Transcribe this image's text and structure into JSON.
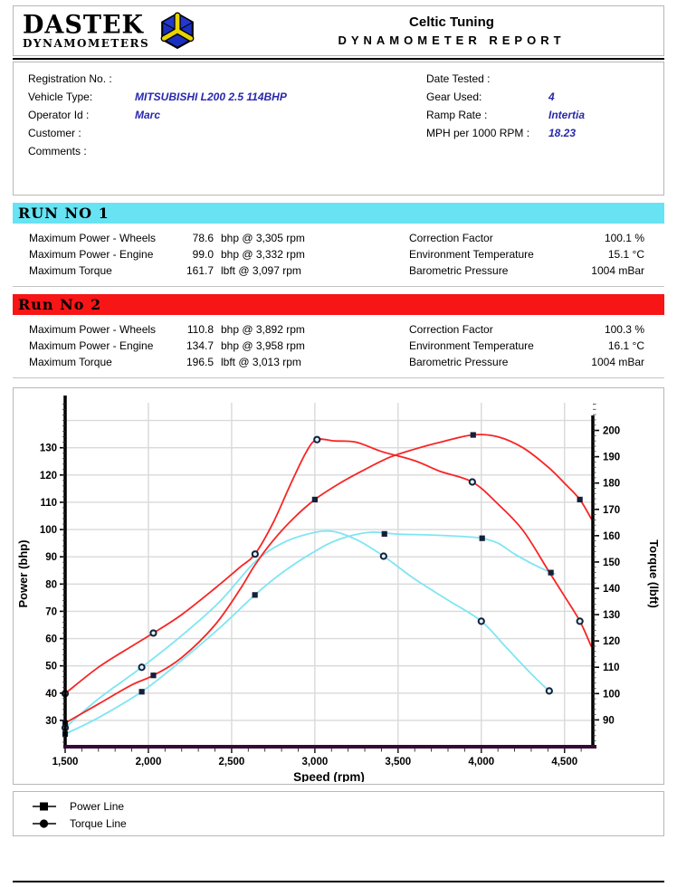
{
  "header": {
    "logo_line1": "DASTEK",
    "logo_line2": "DYNAMOMETERS",
    "title": "Celtic Tuning",
    "subtitle": "DYNAMOMETER REPORT"
  },
  "info": {
    "left": [
      {
        "label": "Registration No. :",
        "value": ""
      },
      {
        "label": "Vehicle Type:",
        "value": "MITSUBISHI L200 2.5 114BHP"
      },
      {
        "label": "Operator Id :",
        "value": "Marc"
      },
      {
        "label": "Customer :",
        "value": ""
      },
      {
        "label": "Comments :",
        "value": ""
      }
    ],
    "right": [
      {
        "label": "Date Tested :",
        "value": ""
      },
      {
        "label": "Gear Used:",
        "value": "4"
      },
      {
        "label": "Ramp Rate :",
        "value": "Intertia"
      },
      {
        "label": "MPH per 1000 RPM :",
        "value": "18.23"
      }
    ],
    "value_color": "#2828ac"
  },
  "runs": [
    {
      "title": "RUN NO 1",
      "band_color": "#67e3f3",
      "stats": [
        {
          "label": "Maximum Power - Wheels",
          "value": "78.6",
          "unit": "bhp @ 3,305 rpm"
        },
        {
          "label": "Maximum Power - Engine",
          "value": "99.0",
          "unit": "bhp @ 3,332 rpm"
        },
        {
          "label": "Maximum Torque",
          "value": "161.7",
          "unit": "lbft @ 3,097 rpm"
        }
      ],
      "env": [
        {
          "label": "Correction Factor",
          "value": "100.1 %"
        },
        {
          "label": "Environment Temperature",
          "value": "15.1 °C"
        },
        {
          "label": "Barometric Pressure",
          "value": "1004 mBar"
        }
      ]
    },
    {
      "title": "Run No 2",
      "band_color": "#f81515",
      "stats": [
        {
          "label": "Maximum Power - Wheels",
          "value": "110.8",
          "unit": "bhp @ 3,892 rpm"
        },
        {
          "label": "Maximum Power - Engine",
          "value": "134.7",
          "unit": "bhp @ 3,958 rpm"
        },
        {
          "label": "Maximum Torque",
          "value": "196.5",
          "unit": "lbft @ 3,013 rpm"
        }
      ],
      "env": [
        {
          "label": "Correction Factor",
          "value": "100.3 %"
        },
        {
          "label": "Environment Temperature",
          "value": "16.1 °C"
        },
        {
          "label": "Barometric Pressure",
          "value": "1004 mBar"
        }
      ]
    }
  ],
  "chart_data": {
    "type": "line",
    "xlabel": "Speed (rpm)",
    "ylabel_left": "Power (bhp)",
    "ylabel_right": "Torque (lbft)",
    "x_range": [
      1500,
      4670
    ],
    "power_range": [
      21,
      146.5
    ],
    "torque_range": [
      80.5,
      210.5
    ],
    "x_ticks": [
      1500,
      2000,
      2500,
      3000,
      3500,
      4000,
      4500
    ],
    "power_ticks": [
      30,
      40,
      50,
      60,
      70,
      80,
      90,
      100,
      110,
      120,
      130
    ],
    "torque_ticks": [
      90,
      100,
      110,
      120,
      130,
      140,
      150,
      160,
      170,
      180,
      190,
      200
    ],
    "grid": true,
    "colors": {
      "run1": "#7fe5f3",
      "run2": "#f72525",
      "marker": "#13203a",
      "grid": "#d9d9d9",
      "x_axis": "#350a35",
      "y_axis": "#000000"
    },
    "series": [
      {
        "name": "Run 1 Power",
        "axis": "power",
        "color": "#7fe5f3",
        "marker": "square",
        "points": [
          [
            1500,
            25
          ],
          [
            1700,
            31
          ],
          [
            1960,
            40.5
          ],
          [
            2200,
            52
          ],
          [
            2430,
            64
          ],
          [
            2640,
            76
          ],
          [
            2800,
            84
          ],
          [
            3000,
            92
          ],
          [
            3150,
            96.5
          ],
          [
            3330,
            99
          ],
          [
            3500,
            98.3
          ],
          [
            3700,
            98
          ],
          [
            3900,
            97.4
          ],
          [
            4005,
            96.8
          ],
          [
            4100,
            95
          ],
          [
            4200,
            91
          ],
          [
            4320,
            87
          ],
          [
            4418,
            84.2
          ],
          [
            4440,
            83.8
          ]
        ],
        "marked": [
          [
            1500,
            25
          ],
          [
            1960,
            40.5
          ],
          [
            2640,
            76
          ],
          [
            3418,
            98.4
          ],
          [
            4005,
            96.8
          ],
          [
            4418,
            84.2
          ]
        ]
      },
      {
        "name": "Run 1 Torque",
        "axis": "torque",
        "color": "#7fe5f3",
        "marker": "circle",
        "points": [
          [
            1500,
            87
          ],
          [
            1700,
            98
          ],
          [
            1960,
            110
          ],
          [
            2200,
            122
          ],
          [
            2430,
            135
          ],
          [
            2640,
            150
          ],
          [
            2800,
            157
          ],
          [
            2950,
            160.5
          ],
          [
            3097,
            161.7
          ],
          [
            3250,
            158.5
          ],
          [
            3413,
            152.2
          ],
          [
            3600,
            143.5
          ],
          [
            3800,
            135.5
          ],
          [
            4000,
            127.5
          ],
          [
            4150,
            117.5
          ],
          [
            4300,
            107.5
          ],
          [
            4408,
            101
          ],
          [
            4430,
            100.3
          ]
        ],
        "marked": [
          [
            1500,
            87
          ],
          [
            1960,
            110
          ],
          [
            3413,
            152.2
          ],
          [
            4000,
            127.5
          ],
          [
            4408,
            101
          ]
        ]
      },
      {
        "name": "Run 2 Power",
        "axis": "power",
        "color": "#f72525",
        "marker": "square",
        "points": [
          [
            1500,
            29
          ],
          [
            1700,
            36
          ],
          [
            1900,
            43
          ],
          [
            2030,
            46.5
          ],
          [
            2200,
            53
          ],
          [
            2400,
            65
          ],
          [
            2550,
            78
          ],
          [
            2640,
            87
          ],
          [
            2750,
            96
          ],
          [
            2870,
            104
          ],
          [
            3000,
            111
          ],
          [
            3150,
            117
          ],
          [
            3300,
            122
          ],
          [
            3450,
            126.5
          ],
          [
            3600,
            129.5
          ],
          [
            3750,
            132
          ],
          [
            3950,
            134.7
          ],
          [
            4100,
            134
          ],
          [
            4250,
            130
          ],
          [
            4400,
            123
          ],
          [
            4500,
            117
          ],
          [
            4592,
            111
          ],
          [
            4660,
            104
          ]
        ],
        "marked": [
          [
            1500,
            29
          ],
          [
            2030,
            46.5
          ],
          [
            3000,
            111
          ],
          [
            3951,
            134.7
          ],
          [
            4592,
            111
          ]
        ]
      },
      {
        "name": "Run 2 Torque",
        "axis": "torque",
        "color": "#f72525",
        "marker": "circle",
        "points": [
          [
            1500,
            100
          ],
          [
            1700,
            110
          ],
          [
            1900,
            118
          ],
          [
            2030,
            123
          ],
          [
            2200,
            130
          ],
          [
            2400,
            140
          ],
          [
            2550,
            148
          ],
          [
            2640,
            153
          ],
          [
            2750,
            165
          ],
          [
            2850,
            179
          ],
          [
            2950,
            192
          ],
          [
            3013,
            196.5
          ],
          [
            3120,
            196
          ],
          [
            3250,
            195.5
          ],
          [
            3400,
            192
          ],
          [
            3600,
            188.5
          ],
          [
            3750,
            184.5
          ],
          [
            3946,
            180.4
          ],
          [
            4100,
            172
          ],
          [
            4250,
            162
          ],
          [
            4400,
            147
          ],
          [
            4500,
            137
          ],
          [
            4592,
            127.5
          ],
          [
            4660,
            118
          ]
        ],
        "marked": [
          [
            1500,
            100
          ],
          [
            2030,
            123
          ],
          [
            2641,
            153
          ],
          [
            3013,
            196.5
          ],
          [
            3946,
            180.4
          ],
          [
            4592,
            127.5
          ]
        ]
      }
    ]
  },
  "legend": [
    {
      "marker": "square",
      "label": "Power Line"
    },
    {
      "marker": "circle",
      "label": "Torque Line"
    }
  ]
}
